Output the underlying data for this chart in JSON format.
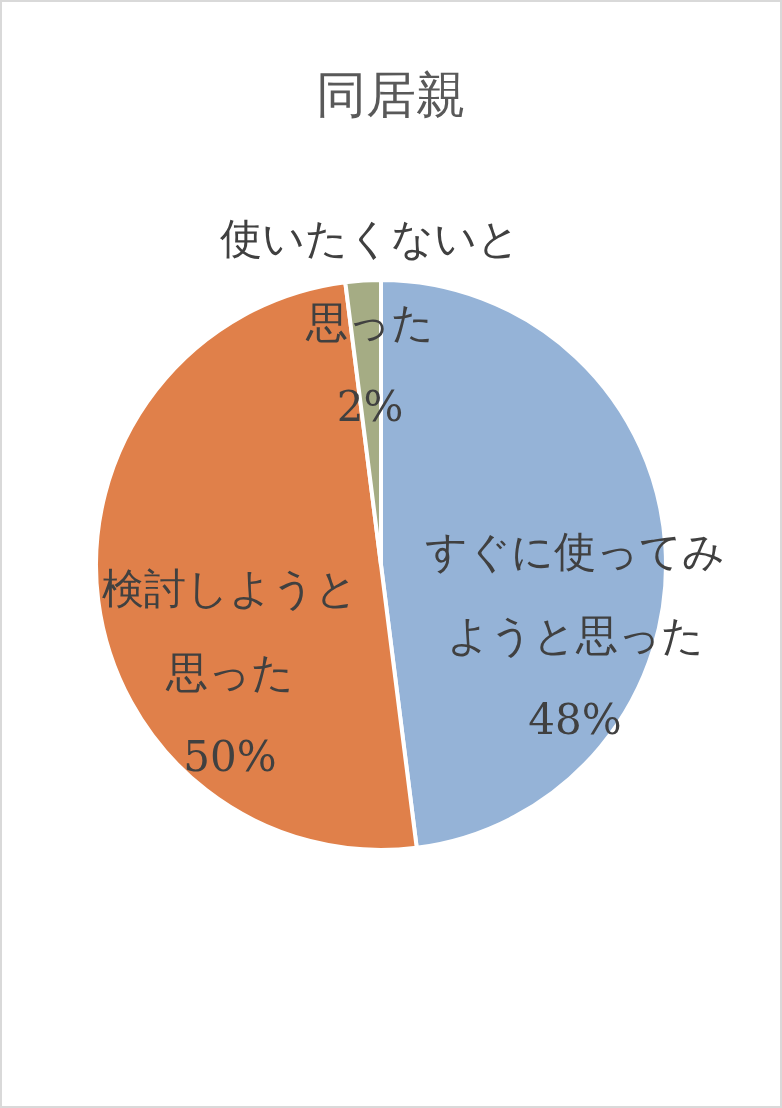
{
  "chart_data": {
    "type": "pie",
    "title": "同居親",
    "categories": [
      "すぐに使ってみようと思った",
      "検討しようと思った",
      "使いたくないと思った"
    ],
    "values": [
      48,
      50,
      2
    ],
    "value_labels": [
      "48%",
      "50%",
      "2%"
    ],
    "colors": [
      "#95b3d7",
      "#e0804a",
      "#a5ac84"
    ]
  }
}
